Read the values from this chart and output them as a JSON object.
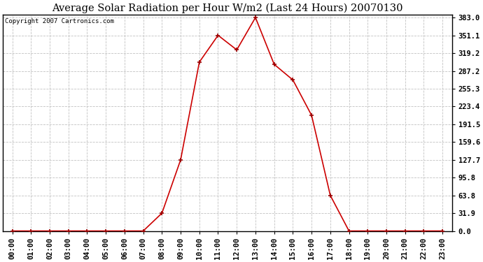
{
  "title": "Average Solar Radiation per Hour W/m2 (Last 24 Hours) 20070130",
  "copyright": "Copyright 2007 Cartronics.com",
  "hours": [
    "00:00",
    "01:00",
    "02:00",
    "03:00",
    "04:00",
    "05:00",
    "06:00",
    "07:00",
    "08:00",
    "09:00",
    "10:00",
    "11:00",
    "12:00",
    "13:00",
    "14:00",
    "15:00",
    "16:00",
    "17:00",
    "18:00",
    "19:00",
    "20:00",
    "21:00",
    "22:00",
    "23:00"
  ],
  "values": [
    0.0,
    0.0,
    0.0,
    0.0,
    0.0,
    0.0,
    0.0,
    0.0,
    31.9,
    127.7,
    303.0,
    351.1,
    325.0,
    383.0,
    299.0,
    271.0,
    207.5,
    63.8,
    0.0,
    0.0,
    0.0,
    0.0,
    0.0,
    0.0
  ],
  "ymax": 383.0,
  "yticks": [
    0.0,
    31.9,
    63.8,
    95.8,
    127.7,
    159.6,
    191.5,
    223.4,
    255.3,
    287.2,
    319.2,
    351.1,
    383.0
  ],
  "line_color": "#cc0000",
  "marker_color": "#990000",
  "bg_color": "#ffffff",
  "grid_color": "#bbbbbb",
  "title_fontsize": 10.5,
  "copyright_fontsize": 6.5,
  "tick_fontsize": 7.5
}
